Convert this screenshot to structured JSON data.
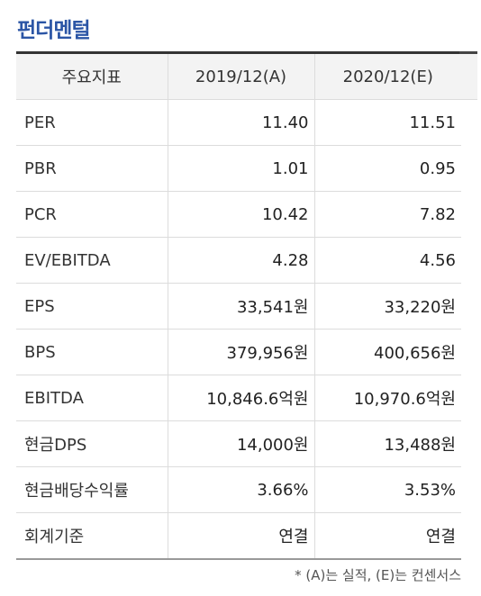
{
  "title": "펀더멘털",
  "table": {
    "headers": [
      "주요지표",
      "2019/12(A)",
      "2020/12(E)"
    ],
    "rows": [
      {
        "label": "PER",
        "v2019": "11.40",
        "v2020": "11.51"
      },
      {
        "label": "PBR",
        "v2019": "1.01",
        "v2020": "0.95"
      },
      {
        "label": "PCR",
        "v2019": "10.42",
        "v2020": "7.82"
      },
      {
        "label": "EV/EBITDA",
        "v2019": "4.28",
        "v2020": "4.56"
      },
      {
        "label": "EPS",
        "v2019": "33,541원",
        "v2020": "33,220원"
      },
      {
        "label": "BPS",
        "v2019": "379,956원",
        "v2020": "400,656원"
      },
      {
        "label": "EBITDA",
        "v2019": "10,846.6억원",
        "v2020": "10,970.6억원"
      },
      {
        "label": "현금DPS",
        "v2019": "14,000원",
        "v2020": "13,488원"
      },
      {
        "label": "현금배당수익률",
        "v2019": "3.66%",
        "v2020": "3.53%"
      },
      {
        "label": "회계기준",
        "v2019": "연결",
        "v2020": "연결"
      }
    ]
  },
  "footnote": "* (A)는 실적, (E)는 컨센서스",
  "colors": {
    "title": "#2b55a5",
    "header_bg": "#f3f3f3"
  }
}
